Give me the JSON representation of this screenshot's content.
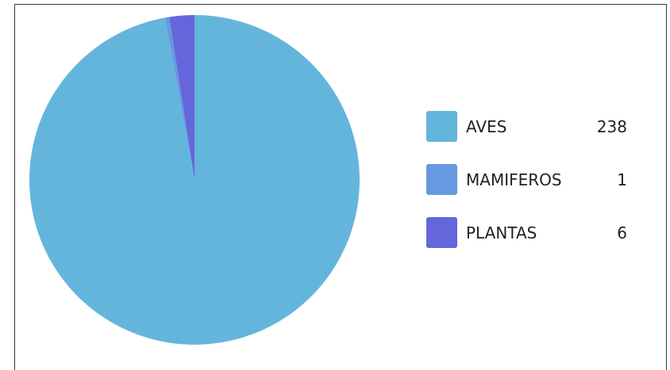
{
  "chart_data": {
    "type": "pie",
    "categories": [
      "AVES",
      "MAMIFEROS",
      "PLANTAS"
    ],
    "values": [
      238,
      1,
      6
    ],
    "colors": [
      "#64b5dc",
      "#6699e0",
      "#6566dc"
    ],
    "legend_placement": "right",
    "title": ""
  },
  "legend": [
    {
      "label": "AVES",
      "value": "238",
      "color": "#64b5dc"
    },
    {
      "label": "MAMIFEROS",
      "value": "1",
      "color": "#6699e0"
    },
    {
      "label": "PLANTAS",
      "value": "6",
      "color": "#6566dc"
    }
  ]
}
